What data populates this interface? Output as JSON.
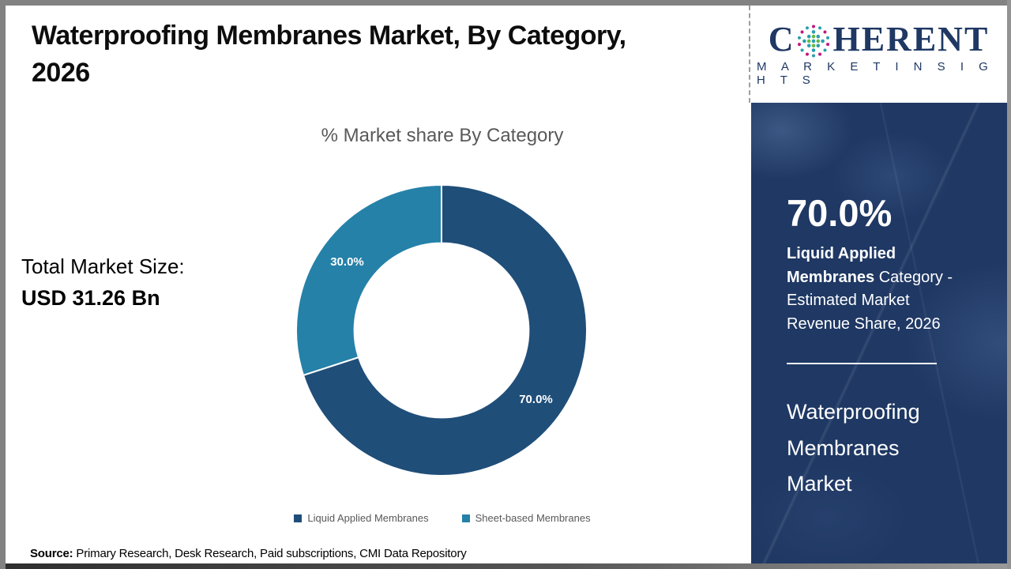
{
  "header": {
    "title_line1": "Waterproofing Membranes Market, By Category,",
    "title_line2": "2026"
  },
  "logo": {
    "part1": "C",
    "part2": "HERENT",
    "subtitle": "M A R K E T   I N S I G H T S",
    "navy": "#1F3864",
    "globe_colors": {
      "teal": "#2B9FAD",
      "green": "#62BB46",
      "magenta": "#C2187B"
    }
  },
  "chart_data": {
    "type": "pie",
    "subtype": "donut",
    "title": "% Market share By Category",
    "categories": [
      "Liquid Applied Membranes",
      "Sheet-based Membranes"
    ],
    "values": [
      70.0,
      30.0
    ],
    "data_labels": [
      "70.0%",
      "30.0%"
    ],
    "colors": [
      "#1F4E79",
      "#2581A8"
    ],
    "start_angle_deg": 0,
    "direction": "clockwise",
    "inner_radius_ratio": 0.6,
    "legend_position": "bottom"
  },
  "stats": {
    "total_label": "Total Market Size:",
    "total_value": "USD 31.26 Bn"
  },
  "sidebar": {
    "stat_value": "70.0%",
    "stat_bold": "Liquid Applied Membranes",
    "stat_rest": " Category - Estimated Market Revenue Share, 2026",
    "market_name": "Waterproofing Membranes Market",
    "bg": "#1F3864"
  },
  "footer": {
    "source_label": "Source:",
    "source_text": " Primary Research, Desk Research, Paid subscriptions, CMI Data Repository"
  }
}
